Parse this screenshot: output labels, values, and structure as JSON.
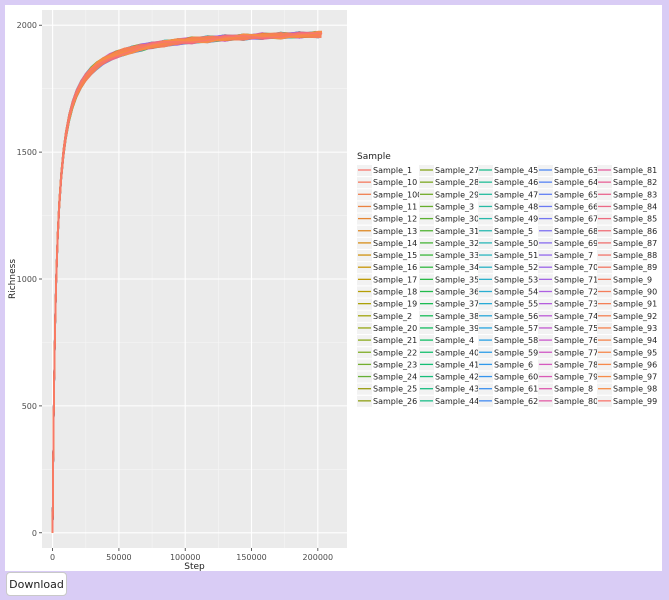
{
  "download_label": "Download",
  "chart_data": {
    "type": "line",
    "title": "",
    "xlabel": "Step",
    "ylabel": "Richness",
    "xlim": [
      -8000,
      222000
    ],
    "ylim": [
      -60,
      2060
    ],
    "x_ticks": [
      0,
      50000,
      100000,
      150000,
      200000
    ],
    "x_tick_labels": [
      "0",
      "50000",
      "100000",
      "150000",
      "200000"
    ],
    "y_ticks": [
      0,
      500,
      1000,
      1500,
      2000
    ],
    "y_tick_labels": [
      "0",
      "500",
      "1000",
      "1500",
      "2000"
    ],
    "grid": true,
    "legend_title": "Sample",
    "legend_position": "right",
    "curve_asymptote": 1990,
    "curve_step_max": 210000,
    "series": [
      {
        "name": "Sample_1",
        "color": "#F8766D"
      },
      {
        "name": "Sample_10",
        "color": "#F47A5E"
      },
      {
        "name": "Sample_100",
        "color": "#F07E4F"
      },
      {
        "name": "Sample_11",
        "color": "#EB8240"
      },
      {
        "name": "Sample_12",
        "color": "#E58632"
      },
      {
        "name": "Sample_13",
        "color": "#DE8A25"
      },
      {
        "name": "Sample_14",
        "color": "#D78E19"
      },
      {
        "name": "Sample_15",
        "color": "#CF920F"
      },
      {
        "name": "Sample_16",
        "color": "#C79608"
      },
      {
        "name": "Sample_17",
        "color": "#BE9A05"
      },
      {
        "name": "Sample_18",
        "color": "#B59E05"
      },
      {
        "name": "Sample_19",
        "color": "#ABA108"
      },
      {
        "name": "Sample_2",
        "color": "#A1A40E"
      },
      {
        "name": "Sample_20",
        "color": "#96A715"
      },
      {
        "name": "Sample_21",
        "color": "#8BAA1D"
      },
      {
        "name": "Sample_22",
        "color": "#7FAC25"
      },
      {
        "name": "Sample_23",
        "color": "#73AE2E"
      },
      {
        "name": "Sample_24",
        "color": "#66B036"
      },
      {
        "name": "Sample_25",
        "color": "#9A9C10"
      },
      {
        "name": "Sample_26",
        "color": "#8FA016"
      },
      {
        "name": "Sample_27",
        "color": "#86A41C"
      },
      {
        "name": "Sample_28",
        "color": "#7CA822"
      },
      {
        "name": "Sample_29",
        "color": "#72AB27"
      },
      {
        "name": "Sample_3",
        "color": "#67AE2C"
      },
      {
        "name": "Sample_30",
        "color": "#5DB130"
      },
      {
        "name": "Sample_31",
        "color": "#52B334"
      },
      {
        "name": "Sample_32",
        "color": "#47B538"
      },
      {
        "name": "Sample_33",
        "color": "#3CB73C"
      },
      {
        "name": "Sample_34",
        "color": "#32B941"
      },
      {
        "name": "Sample_35",
        "color": "#29BA46"
      },
      {
        "name": "Sample_36",
        "color": "#21BB4C"
      },
      {
        "name": "Sample_37",
        "color": "#1BBC52"
      },
      {
        "name": "Sample_38",
        "color": "#17BD58"
      },
      {
        "name": "Sample_39",
        "color": "#14BD5F"
      },
      {
        "name": "Sample_4",
        "color": "#13BE66"
      },
      {
        "name": "Sample_40",
        "color": "#13BE6D"
      },
      {
        "name": "Sample_41",
        "color": "#14BE74"
      },
      {
        "name": "Sample_42",
        "color": "#16BE7B"
      },
      {
        "name": "Sample_43",
        "color": "#19BE82"
      },
      {
        "name": "Sample_44",
        "color": "#1CBE89"
      },
      {
        "name": "Sample_45",
        "color": "#1FBD90"
      },
      {
        "name": "Sample_46",
        "color": "#22BD97"
      },
      {
        "name": "Sample_47",
        "color": "#24BC9E"
      },
      {
        "name": "Sample_48",
        "color": "#26BBA5"
      },
      {
        "name": "Sample_49",
        "color": "#28BAAC"
      },
      {
        "name": "Sample_5",
        "color": "#29B9B2"
      },
      {
        "name": "Sample_50",
        "color": "#2AB7B9"
      },
      {
        "name": "Sample_51",
        "color": "#2AB5BF"
      },
      {
        "name": "Sample_52",
        "color": "#2AB3C5"
      },
      {
        "name": "Sample_53",
        "color": "#2AB1CB"
      },
      {
        "name": "Sample_54",
        "color": "#29AED1"
      },
      {
        "name": "Sample_55",
        "color": "#28ABD6"
      },
      {
        "name": "Sample_56",
        "color": "#28A8DB"
      },
      {
        "name": "Sample_57",
        "color": "#28A5E0"
      },
      {
        "name": "Sample_58",
        "color": "#29A1E4"
      },
      {
        "name": "Sample_59",
        "color": "#2B9DE8"
      },
      {
        "name": "Sample_6",
        "color": "#2F99EB"
      },
      {
        "name": "Sample_60",
        "color": "#3595EE"
      },
      {
        "name": "Sample_61",
        "color": "#3C91F0"
      },
      {
        "name": "Sample_62",
        "color": "#448CF2"
      },
      {
        "name": "Sample_63",
        "color": "#4D88F3"
      },
      {
        "name": "Sample_64",
        "color": "#5683F4"
      },
      {
        "name": "Sample_65",
        "color": "#607EF4"
      },
      {
        "name": "Sample_66",
        "color": "#6A79F4"
      },
      {
        "name": "Sample_67",
        "color": "#7475F3"
      },
      {
        "name": "Sample_68",
        "color": "#7E70F2"
      },
      {
        "name": "Sample_69",
        "color": "#886CF0"
      },
      {
        "name": "Sample_7",
        "color": "#9268ED"
      },
      {
        "name": "Sample_70",
        "color": "#9B65EA"
      },
      {
        "name": "Sample_71",
        "color": "#A462E6"
      },
      {
        "name": "Sample_72",
        "color": "#AD5FE2"
      },
      {
        "name": "Sample_73",
        "color": "#B55DDD"
      },
      {
        "name": "Sample_74",
        "color": "#BD5BD8"
      },
      {
        "name": "Sample_75",
        "color": "#C45AD2"
      },
      {
        "name": "Sample_76",
        "color": "#CA59CC"
      },
      {
        "name": "Sample_77",
        "color": "#D059C5"
      },
      {
        "name": "Sample_78",
        "color": "#D559BE"
      },
      {
        "name": "Sample_79",
        "color": "#DA5AB7"
      },
      {
        "name": "Sample_8",
        "color": "#DE5BAF"
      },
      {
        "name": "Sample_80",
        "color": "#E25DA7"
      },
      {
        "name": "Sample_81",
        "color": "#E55F9F"
      },
      {
        "name": "Sample_82",
        "color": "#E86297"
      },
      {
        "name": "Sample_83",
        "color": "#EA658E"
      },
      {
        "name": "Sample_84",
        "color": "#EC6886"
      },
      {
        "name": "Sample_85",
        "color": "#EE6B7E"
      },
      {
        "name": "Sample_86",
        "color": "#EF6E77"
      },
      {
        "name": "Sample_87",
        "color": "#F07170"
      },
      {
        "name": "Sample_88",
        "color": "#F1746A"
      },
      {
        "name": "Sample_89",
        "color": "#F27764"
      },
      {
        "name": "Sample_9",
        "color": "#F37A5F"
      },
      {
        "name": "Sample_90",
        "color": "#F47D5A"
      },
      {
        "name": "Sample_91",
        "color": "#F47F56"
      },
      {
        "name": "Sample_92",
        "color": "#F58153"
      },
      {
        "name": "Sample_93",
        "color": "#F58350"
      },
      {
        "name": "Sample_94",
        "color": "#F6854D"
      },
      {
        "name": "Sample_95",
        "color": "#F6874B"
      },
      {
        "name": "Sample_96",
        "color": "#F7894A"
      },
      {
        "name": "Sample_97",
        "color": "#F78B49"
      },
      {
        "name": "Sample_98",
        "color": "#F78D48"
      },
      {
        "name": "Sample_99",
        "color": "#F8766D"
      }
    ]
  }
}
